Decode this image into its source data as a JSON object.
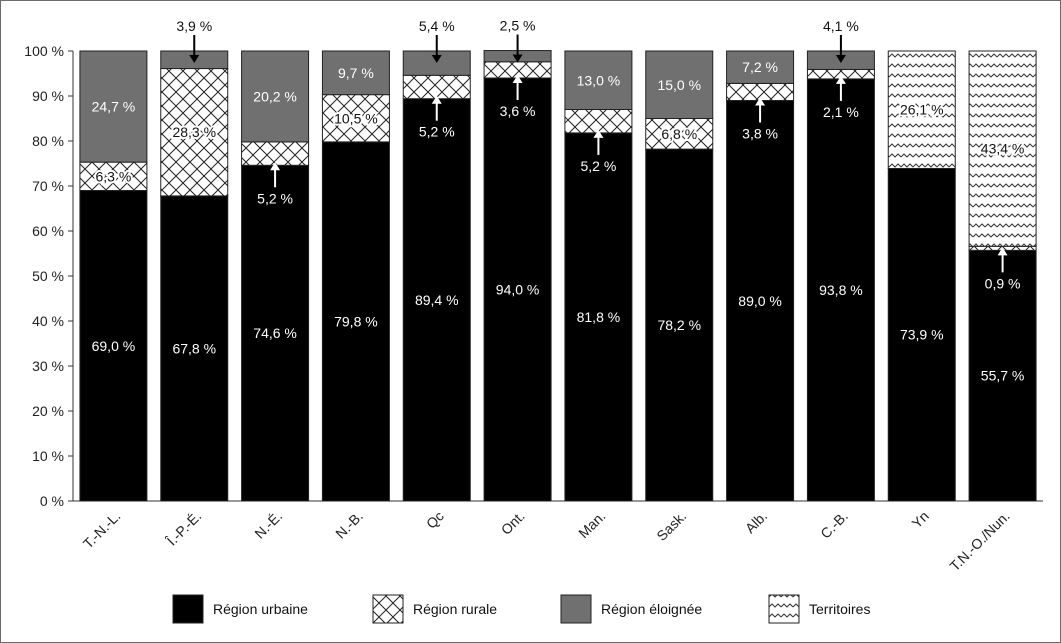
{
  "chart_data": {
    "type": "bar",
    "stacked": true,
    "percent_stacked": true,
    "title": "",
    "xlabel": "",
    "ylabel": "",
    "ylim": [
      0,
      100
    ],
    "y_ticks": [
      "0 %",
      "10 %",
      "20 %",
      "30 %",
      "40 %",
      "50 %",
      "60 %",
      "70 %",
      "80 %",
      "90 %",
      "100 %"
    ],
    "categories": [
      "T.-N.-L.",
      "Î.-P.-É.",
      "N.-É.",
      "N.-B.",
      "Qc",
      "Ont.",
      "Man.",
      "Sask.",
      "Alb.",
      "C.-B.",
      "Yn",
      "T.N.-O./Nun."
    ],
    "series": [
      {
        "name": "Région urbaine",
        "color": "#000000",
        "pattern": "solid",
        "values": [
          69.0,
          67.8,
          74.6,
          79.8,
          89.4,
          94.0,
          81.8,
          78.2,
          89.0,
          93.8,
          73.9,
          55.7
        ]
      },
      {
        "name": "Région rurale",
        "color": "#ffffff",
        "pattern": "crosshatch",
        "values": [
          6.3,
          28.3,
          5.2,
          10.5,
          5.2,
          3.6,
          5.2,
          6.8,
          3.8,
          2.1,
          null,
          0.9
        ]
      },
      {
        "name": "Région éloignée",
        "color": "#707070",
        "pattern": "solid",
        "values": [
          24.7,
          3.9,
          20.2,
          9.7,
          5.4,
          2.5,
          13.0,
          15.0,
          7.2,
          4.1,
          null,
          null
        ]
      },
      {
        "name": "Territoires",
        "color": "#ffffff",
        "pattern": "zigzag",
        "values": [
          null,
          null,
          null,
          null,
          null,
          null,
          null,
          null,
          null,
          null,
          26.1,
          43.4
        ]
      }
    ],
    "data_labels": [
      [
        "69,0 %",
        "6,3 %",
        "24,7 %",
        null
      ],
      [
        "67,8 %",
        "28,3 %",
        "3,9 %",
        null
      ],
      [
        "74,6 %",
        "5,2 %",
        "20,2 %",
        null
      ],
      [
        "79,8 %",
        "10,5 %",
        "9,7 %",
        null
      ],
      [
        "89,4 %",
        "5,2 %",
        "5,4 %",
        null
      ],
      [
        "94,0 %",
        "3,6 %",
        "2,5 %",
        null
      ],
      [
        "81,8 %",
        "5,2 %",
        "13,0 %",
        null
      ],
      [
        "78,2 %",
        "6,8 %",
        "15,0 %",
        null
      ],
      [
        "89,0 %",
        "3,8 %",
        "7,2 %",
        null
      ],
      [
        "93,8 %",
        "2,1 %",
        "4,1 %",
        null
      ],
      [
        "73,9 %",
        null,
        null,
        "26,1 %"
      ],
      [
        "55,7 %",
        "0,9 %",
        null,
        "43,4 %"
      ]
    ],
    "legend": {
      "placement": "bottom",
      "entries": [
        "Région urbaine",
        "Région rurale",
        "Région éloignée",
        "Territoires"
      ]
    },
    "grid": false
  }
}
